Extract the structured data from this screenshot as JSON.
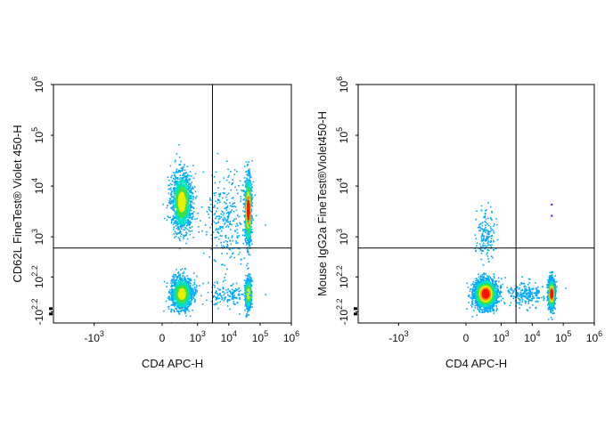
{
  "chart_data": [
    {
      "type": "scatter",
      "subtype": "flow-cytometry-density-dot-plot",
      "xlabel": "CD4 APC-H",
      "ylabel": "CD62L FineTest® Violet 450-H",
      "x_ticks": [
        {
          "base": "-10",
          "exp": "3"
        },
        {
          "base": "0",
          "exp": ""
        },
        {
          "base": "10",
          "exp": "3"
        },
        {
          "base": "10",
          "exp": "4"
        },
        {
          "base": "10",
          "exp": "5"
        },
        {
          "base": "10",
          "exp": "6"
        }
      ],
      "y_ticks": [
        {
          "base": "-10",
          "exp": "2.2"
        },
        {
          "base": "10",
          "exp": "2.2"
        },
        {
          "base": "10",
          "exp": "3"
        },
        {
          "base": "10",
          "exp": "4"
        },
        {
          "base": "10",
          "exp": "5"
        },
        {
          "base": "10",
          "exp": "6"
        }
      ],
      "axis_scale": "biexponential",
      "gate": {
        "x": 3000,
        "y": 600
      },
      "populations": [
        {
          "name": "CD4- CD62L high",
          "x_center": 300,
          "y_center": 5000,
          "relative_density": "high"
        },
        {
          "name": "CD4- CD62L low",
          "x_center": 300,
          "y_center": 0,
          "relative_density": "high"
        },
        {
          "name": "CD4+ CD62L high",
          "x_center": 40000,
          "y_center": 3500,
          "relative_density": "very high"
        },
        {
          "name": "CD4+ CD62L low",
          "x_center": 40000,
          "y_center": 0,
          "relative_density": "medium"
        }
      ]
    },
    {
      "type": "scatter",
      "subtype": "flow-cytometry-density-dot-plot",
      "xlabel": "CD4 APC-H",
      "ylabel": "Mouse IgG2a FineTest®Violet450-H",
      "x_ticks": [
        {
          "base": "-10",
          "exp": "3"
        },
        {
          "base": "0",
          "exp": ""
        },
        {
          "base": "10",
          "exp": "3"
        },
        {
          "base": "10",
          "exp": "4"
        },
        {
          "base": "10",
          "exp": "5"
        },
        {
          "base": "10",
          "exp": "6"
        }
      ],
      "y_ticks": [
        {
          "base": "-10",
          "exp": "2.2"
        },
        {
          "base": "10",
          "exp": "2.2"
        },
        {
          "base": "10",
          "exp": "3"
        },
        {
          "base": "10",
          "exp": "4"
        },
        {
          "base": "10",
          "exp": "5"
        },
        {
          "base": "10",
          "exp": "6"
        }
      ],
      "axis_scale": "biexponential",
      "gate": {
        "x": 3000,
        "y": 600
      },
      "populations": [
        {
          "name": "CD4- isotype",
          "x_center": 300,
          "y_center": 0,
          "relative_density": "very high"
        },
        {
          "name": "CD4+ isotype",
          "x_center": 40000,
          "y_center": 0,
          "relative_density": "high"
        },
        {
          "name": "CD4- scattered high",
          "x_center": 300,
          "y_center": 1200,
          "relative_density": "low"
        }
      ]
    }
  ]
}
